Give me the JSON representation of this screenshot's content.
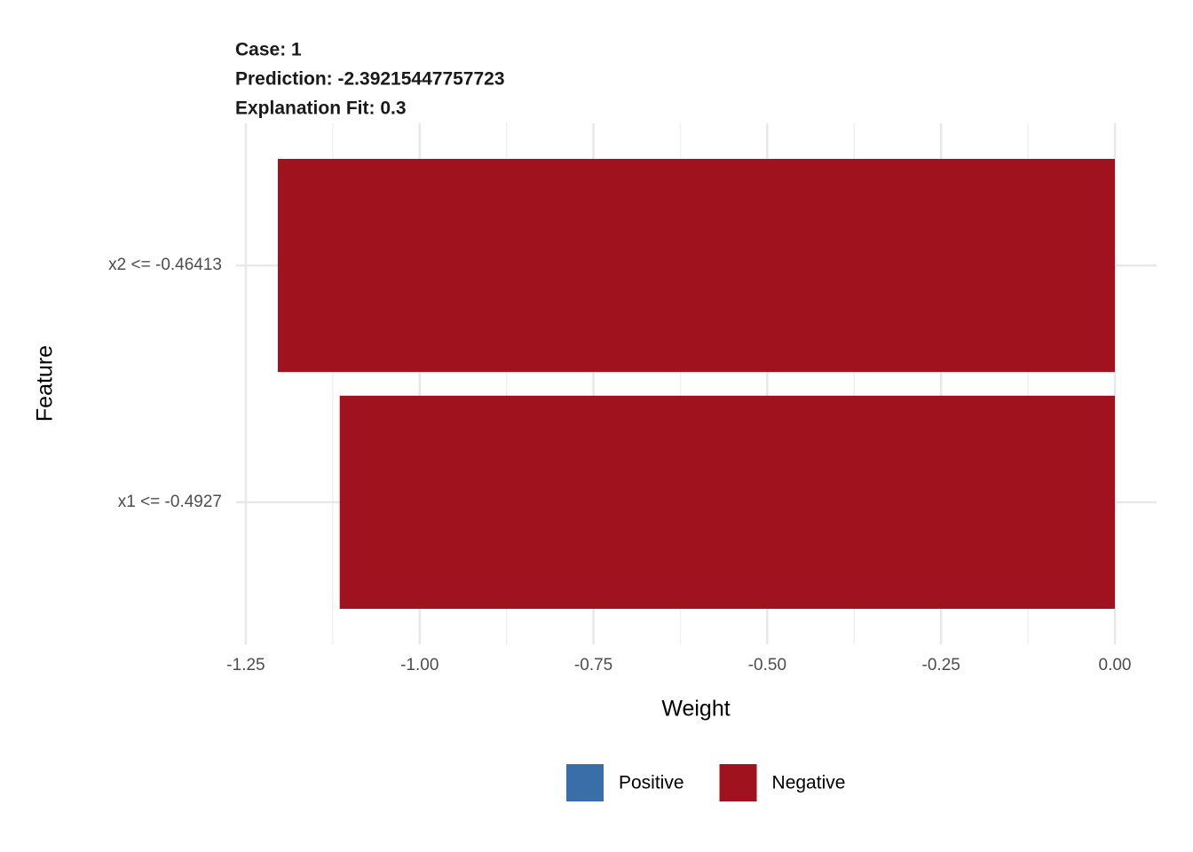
{
  "chart_data": {
    "type": "hbar",
    "title_lines": [
      "Case: 1",
      "Prediction: -2.39215447757723",
      "Explanation Fit: 0.3"
    ],
    "x_label": "Weight",
    "y_label": "Feature",
    "categories": [
      "x2 <= -0.46413",
      "x1 <= -0.4927"
    ],
    "values": [
      -1.204,
      -1.115
    ],
    "legend": [
      {
        "name": "Positive",
        "color": "#3a6ea8"
      },
      {
        "name": "Negative",
        "color": "#a0121d"
      }
    ],
    "xlim": [
      -1.264,
      0.06
    ],
    "xticks": [
      {
        "value": -1.25,
        "label": "-1.25"
      },
      {
        "value": -1.0,
        "label": "-1.00"
      },
      {
        "value": -0.75,
        "label": "-0.75"
      },
      {
        "value": -0.5,
        "label": "-0.50"
      },
      {
        "value": -0.25,
        "label": "-0.25"
      },
      {
        "value": 0,
        "label": "0.00"
      }
    ],
    "xminor": [
      -1.125,
      -0.875,
      -0.625,
      -0.375,
      -0.125
    ],
    "grid": true
  }
}
